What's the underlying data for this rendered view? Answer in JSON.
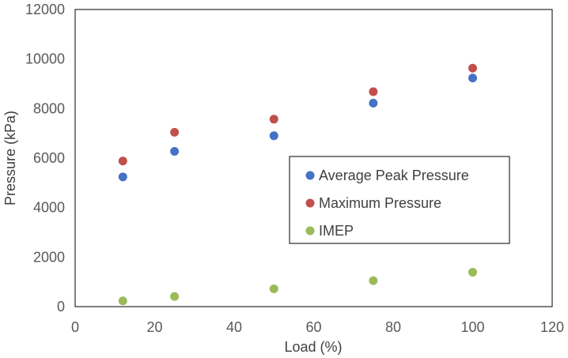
{
  "chart_data": {
    "type": "scatter",
    "title": "",
    "xlabel": "Load (%)",
    "ylabel": "Pressure (kPa)",
    "xlim": [
      0,
      120
    ],
    "ylim": [
      0,
      12000
    ],
    "xticks": [
      0,
      20,
      40,
      60,
      80,
      100,
      120
    ],
    "yticks": [
      0,
      2000,
      4000,
      6000,
      8000,
      10000,
      12000
    ],
    "grid": false,
    "legend_position": "right-center",
    "series": [
      {
        "name": "Average Peak Pressure",
        "color": "#4472C4",
        "points": [
          [
            12,
            5240
          ],
          [
            25,
            6270
          ],
          [
            50,
            6900
          ],
          [
            75,
            8220
          ],
          [
            100,
            9230
          ]
        ]
      },
      {
        "name": "Maximum Pressure",
        "color": "#C0504D",
        "points": [
          [
            12,
            5880
          ],
          [
            25,
            7040
          ],
          [
            50,
            7570
          ],
          [
            75,
            8680
          ],
          [
            100,
            9630
          ]
        ]
      },
      {
        "name": "IMEP",
        "color": "#9BBB59",
        "points": [
          [
            12,
            230
          ],
          [
            25,
            410
          ],
          [
            50,
            720
          ],
          [
            75,
            1050
          ],
          [
            100,
            1390
          ]
        ]
      }
    ]
  }
}
